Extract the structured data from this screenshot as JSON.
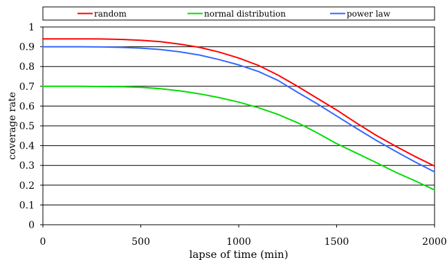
{
  "chart_data": {
    "type": "line",
    "title": "",
    "xlabel": "lapse of time (min)",
    "ylabel": "coverage rate",
    "xlim": [
      0,
      2000
    ],
    "ylim": [
      0,
      1
    ],
    "x_ticks": [
      0,
      500,
      1000,
      1500,
      2000
    ],
    "x_tick_labels": [
      "0",
      "500",
      "1000",
      "1500",
      "2000"
    ],
    "y_ticks": [
      0,
      0.1,
      0.2,
      0.3,
      0.4,
      0.5,
      0.6,
      0.7,
      0.8,
      0.9,
      1
    ],
    "y_tick_labels": [
      "0",
      "0.1",
      "0.2",
      "0.3",
      "0.4",
      "0.5",
      "0.6",
      "0.7",
      "0.8",
      "0.9",
      "1"
    ],
    "grid": "horizontal",
    "legend_position": "top",
    "series": [
      {
        "name": "random",
        "color": "#ff0000",
        "x": [
          0,
          100,
          200,
          300,
          400,
          500,
          600,
          700,
          800,
          900,
          1000,
          1100,
          1200,
          1300,
          1400,
          1500,
          1600,
          1700,
          1800,
          1900,
          2000
        ],
        "values": [
          0.94,
          0.94,
          0.94,
          0.939,
          0.937,
          0.933,
          0.926,
          0.913,
          0.897,
          0.873,
          0.843,
          0.806,
          0.757,
          0.7,
          0.64,
          0.58,
          0.515,
          0.453,
          0.398,
          0.345,
          0.297
        ]
      },
      {
        "name": "normal distribution",
        "color": "#00dd00",
        "x": [
          0,
          100,
          200,
          300,
          400,
          500,
          600,
          700,
          800,
          900,
          1000,
          1100,
          1200,
          1300,
          1400,
          1500,
          1600,
          1700,
          1800,
          1900,
          2000
        ],
        "values": [
          0.7,
          0.7,
          0.7,
          0.699,
          0.698,
          0.695,
          0.688,
          0.677,
          0.662,
          0.643,
          0.62,
          0.592,
          0.558,
          0.516,
          0.465,
          0.41,
          0.363,
          0.315,
          0.266,
          0.222,
          0.176
        ]
      },
      {
        "name": "power law",
        "color": "#3366ff",
        "x": [
          0,
          100,
          200,
          300,
          400,
          500,
          600,
          700,
          800,
          900,
          1000,
          1100,
          1200,
          1300,
          1400,
          1500,
          1600,
          1700,
          1800,
          1900,
          2000
        ],
        "values": [
          0.9,
          0.9,
          0.9,
          0.899,
          0.897,
          0.893,
          0.886,
          0.874,
          0.858,
          0.835,
          0.808,
          0.775,
          0.73,
          0.67,
          0.612,
          0.55,
          0.488,
          0.428,
          0.372,
          0.318,
          0.267
        ]
      }
    ]
  }
}
